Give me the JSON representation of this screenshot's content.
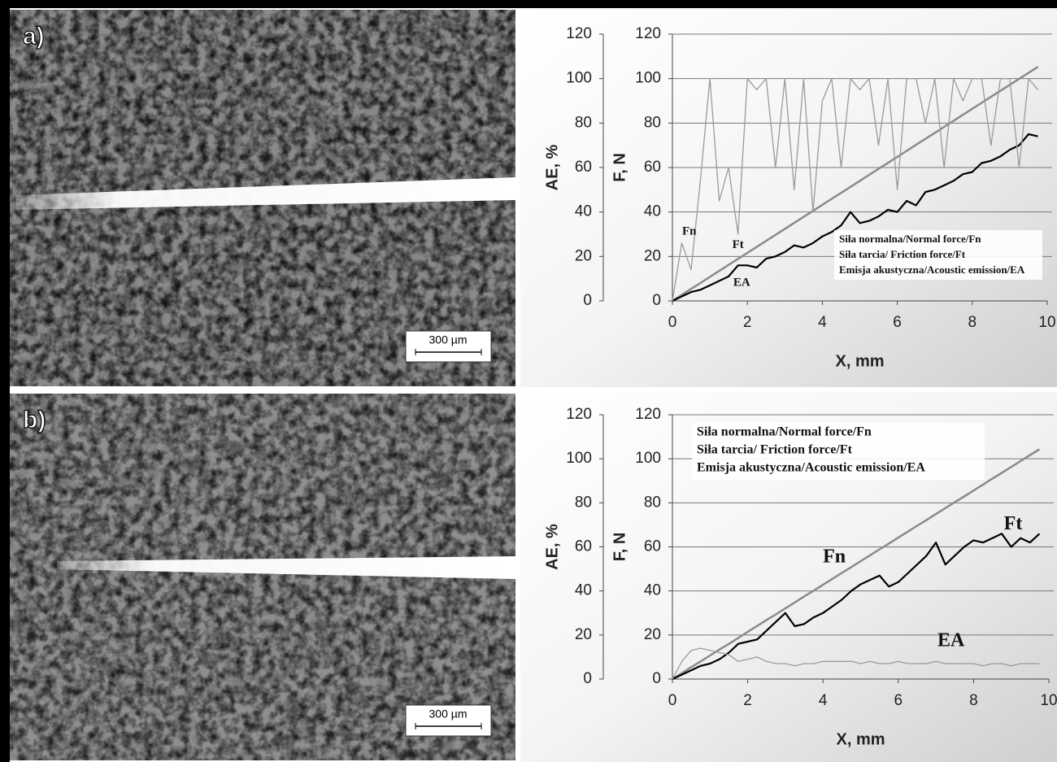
{
  "panels": [
    {
      "label": "a)",
      "scale_bar": "300 µm"
    },
    {
      "label": "b)",
      "scale_bar": "300 µm"
    }
  ],
  "chart_data": [
    {
      "type": "line",
      "xlabel": "X, mm",
      "ylabel": "F, N",
      "y2label": "AE, %",
      "xlim": [
        0,
        10
      ],
      "xticks": [
        0,
        2,
        4,
        6,
        8,
        10
      ],
      "ylim": [
        0,
        120
      ],
      "yticks": [
        0,
        20,
        40,
        60,
        80,
        100,
        120
      ],
      "y2lim": [
        0,
        120
      ],
      "y2ticks": [
        0,
        20,
        40,
        60,
        80,
        100,
        120
      ],
      "grid": true,
      "legend": "lower right",
      "x": [
        0,
        0.25,
        0.5,
        0.75,
        1,
        1.25,
        1.5,
        1.75,
        2,
        2.25,
        2.5,
        2.75,
        3,
        3.25,
        3.5,
        3.75,
        4,
        4.25,
        4.5,
        4.75,
        5,
        5.25,
        5.5,
        5.75,
        6,
        6.25,
        6.5,
        6.75,
        7,
        7.25,
        7.5,
        7.75,
        8,
        8.25,
        8.5,
        8.75,
        9,
        9.25,
        9.5,
        9.75
      ],
      "series": [
        {
          "name": "Siła normalna/Normal force/Fn",
          "color": "#8a8a8a",
          "values": [
            0,
            2.7,
            5.4,
            8.1,
            10.8,
            13.5,
            16.2,
            18.9,
            21.6,
            24.3,
            27,
            29.7,
            32.4,
            35.1,
            37.8,
            40.5,
            43.2,
            45.9,
            48.6,
            51.3,
            54,
            56.7,
            59.4,
            62.1,
            64.8,
            67.5,
            70.2,
            72.9,
            75.6,
            78.3,
            81,
            83.7,
            86.4,
            89.1,
            91.8,
            94.5,
            97.2,
            99.9,
            102.6,
            105.3
          ]
        },
        {
          "name": "Siła tarcia/ Friction force/Ft",
          "color": "#000000",
          "values": [
            0,
            2,
            4,
            5,
            7,
            9,
            11,
            16,
            16,
            15,
            19,
            20,
            22,
            25,
            24,
            26,
            29,
            31,
            34,
            40,
            35,
            36,
            38,
            41,
            40,
            45,
            43,
            49,
            50,
            52,
            54,
            57,
            58,
            62,
            63,
            65,
            68,
            70,
            75,
            74
          ]
        },
        {
          "name": "Emisja akustyczna/Acoustic emission/EA",
          "color": "#9a9a9a",
          "axis": "y2",
          "values": [
            0,
            26,
            14,
            55,
            100,
            45,
            60,
            30,
            100,
            95,
            100,
            60,
            100,
            50,
            100,
            40,
            90,
            100,
            60,
            100,
            95,
            100,
            70,
            100,
            50,
            100,
            100,
            80,
            100,
            60,
            100,
            90,
            100,
            100,
            70,
            100,
            100,
            60,
            100,
            95
          ]
        }
      ],
      "annotations": [
        {
          "text": "Fn",
          "x": 0.45,
          "y": 31
        },
        {
          "text": "Ft",
          "x": 1.75,
          "y": 25
        },
        {
          "text": "EA",
          "x": 1.85,
          "y": 8
        }
      ]
    },
    {
      "type": "line",
      "xlabel": "X, mm",
      "ylabel": "F, N",
      "y2label": "AE, %",
      "xlim": [
        0,
        10
      ],
      "xticks": [
        0,
        2,
        4,
        6,
        8,
        10
      ],
      "ylim": [
        0,
        120
      ],
      "yticks": [
        0,
        20,
        40,
        60,
        80,
        100,
        120
      ],
      "y2lim": [
        0,
        120
      ],
      "y2ticks": [
        0,
        20,
        40,
        60,
        80,
        100,
        120
      ],
      "grid": true,
      "legend": "upper left",
      "x": [
        0,
        0.25,
        0.5,
        0.75,
        1,
        1.25,
        1.5,
        1.75,
        2,
        2.25,
        2.5,
        2.75,
        3,
        3.25,
        3.5,
        3.75,
        4,
        4.25,
        4.5,
        4.75,
        5,
        5.25,
        5.5,
        5.75,
        6,
        6.25,
        6.5,
        6.75,
        7,
        7.25,
        7.5,
        7.75,
        8,
        8.25,
        8.5,
        8.75,
        9,
        9.25,
        9.5,
        9.75
      ],
      "series": [
        {
          "name": "Siła normalna/Normal force/Fn",
          "color": "#8a8a8a",
          "values": [
            0,
            2.7,
            5.4,
            8,
            10.7,
            13.4,
            16,
            18.7,
            21.4,
            24.1,
            26.8,
            29.4,
            32.1,
            34.8,
            37.5,
            40.1,
            42.8,
            45.5,
            48.2,
            50.8,
            53.5,
            56.2,
            58.9,
            61.5,
            64.2,
            66.9,
            69.6,
            72.2,
            74.9,
            77.6,
            80.3,
            82.9,
            85.6,
            88.3,
            91,
            93.6,
            96.3,
            99,
            101.7,
            104.3
          ]
        },
        {
          "name": "Siła tarcia/ Friction force/Ft",
          "color": "#000000",
          "values": [
            0,
            2,
            4,
            6,
            7,
            9,
            12,
            16,
            17,
            18,
            22,
            26,
            30,
            24,
            25,
            28,
            30,
            33,
            36,
            40,
            43,
            45,
            47,
            42,
            44,
            48,
            52,
            56,
            62,
            52,
            56,
            60,
            63,
            62,
            64,
            66,
            60,
            64,
            62,
            66
          ]
        },
        {
          "name": "Emisja akustyczna/Acoustic emission/EA",
          "color": "#9a9a9a",
          "axis": "y2",
          "values": [
            0,
            8,
            13,
            14,
            13,
            12,
            11,
            8,
            9,
            10,
            8,
            7,
            7,
            6,
            7,
            7,
            8,
            8,
            8,
            8,
            7,
            8,
            7,
            7,
            8,
            7,
            7,
            7,
            8,
            7,
            7,
            7,
            7,
            6,
            7,
            7,
            6,
            7,
            7,
            7
          ]
        }
      ],
      "annotations": [
        {
          "text": "Fn",
          "x": 4.3,
          "y": 55
        },
        {
          "text": "Ft",
          "x": 9.05,
          "y": 70
        },
        {
          "text": "EA",
          "x": 7.4,
          "y": 17
        }
      ]
    }
  ]
}
